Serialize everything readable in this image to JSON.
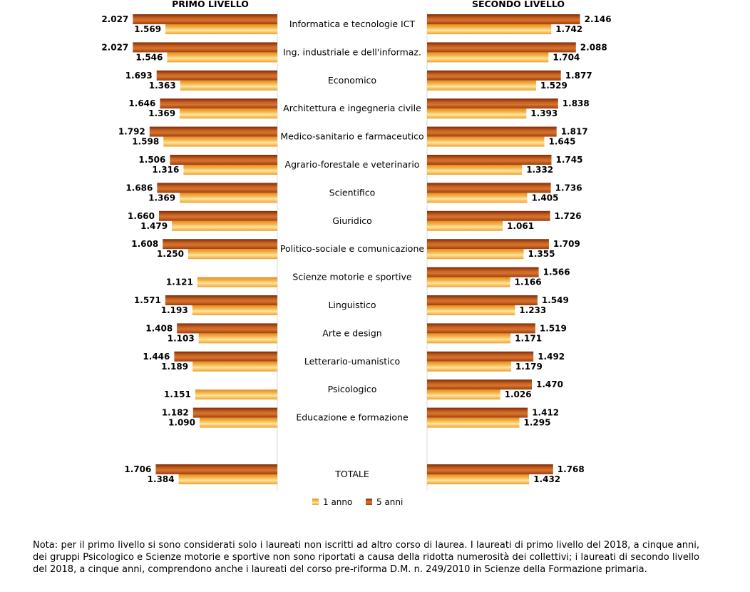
{
  "chart_data": {
    "type": "bar",
    "orientation": "horizontal",
    "panels": [
      {
        "title": "PRIMO LIVELLO",
        "direction": "leftward"
      },
      {
        "title": "SECONDO LIVELLO",
        "direction": "rightward"
      }
    ],
    "categories": [
      "Informatica e tecnologie ICT",
      "Ing. industriale e dell'informaz.",
      "Economico",
      "Architettura e ingegneria civile",
      "Medico-sanitario e farmaceutico",
      "Agrario-forestale e veterinario",
      "Scientifico",
      "Giuridico",
      "Politico-sociale e comunicazione",
      "Scienze motorie e sportive",
      "Linguistico",
      "Arte e design",
      "Letterario-umanistico",
      "Psicologico",
      "Educazione e formazione",
      "TOTALE"
    ],
    "series_order_top_to_bottom": [
      "5 anni",
      "1 anno"
    ],
    "series": [
      {
        "name": "5 anni",
        "color": "#c0561b",
        "primo": [
          2027,
          2027,
          1693,
          1646,
          1792,
          1506,
          1686,
          1660,
          1608,
          null,
          1571,
          1408,
          1446,
          null,
          1182,
          1706
        ],
        "secondo": [
          2146,
          2088,
          1877,
          1838,
          1817,
          1745,
          1736,
          1726,
          1709,
          1566,
          1549,
          1519,
          1492,
          1470,
          1412,
          1768
        ]
      },
      {
        "name": "1 anno",
        "color": "#f2a73c",
        "primo": [
          1569,
          1546,
          1363,
          1369,
          1598,
          1316,
          1369,
          1479,
          1250,
          1121,
          1193,
          1103,
          1189,
          1151,
          1090,
          1384
        ],
        "secondo": [
          1742,
          1704,
          1529,
          1393,
          1645,
          1332,
          1405,
          1061,
          1355,
          1166,
          1233,
          1171,
          1179,
          1026,
          1295,
          1432
        ]
      }
    ],
    "value_labels": {
      "5 anni": {
        "primo": [
          "2.027",
          "2.027",
          "1.693",
          "1.646",
          "1.792",
          "1.506",
          "1.686",
          "1.660",
          "1.608",
          null,
          "1.571",
          "1.408",
          "1.446",
          null,
          "1.182",
          "1.706"
        ],
        "secondo": [
          "2.146",
          "2.088",
          "1.877",
          "1.838",
          "1.817",
          "1.745",
          "1.736",
          "1.726",
          "1.709",
          "1.566",
          "1.549",
          "1.519",
          "1.492",
          "1.470",
          "1.412",
          "1.768"
        ]
      },
      "1 anno": {
        "primo": [
          "1.569",
          "1.546",
          "1.363",
          "1.369",
          "1.598",
          "1.316",
          "1.369",
          "1.479",
          "1.250",
          "1.121",
          "1.193",
          "1.103",
          "1.189",
          "1.151",
          "1.090",
          "1.384"
        ],
        "secondo": [
          "1.742",
          "1.704",
          "1.529",
          "1.393",
          "1.645",
          "1.332",
          "1.405",
          "1.061",
          "1.355",
          "1.166",
          "1.233",
          "1.171",
          "1.179",
          "1.026",
          "1.295",
          "1.432"
        ]
      }
    },
    "legend": {
      "items": [
        "1 anno",
        "5 anni"
      ],
      "position": "bottom-center"
    },
    "grid": false
  },
  "note": "Nota: per il primo livello si sono considerati solo i laureati non iscritti ad altro corso di laurea. I laureati di primo livello del 2018, a cinque anni, dei gruppi Psicologico e Scienze motorie e sportive non sono riportati a causa della ridotta numerosità dei collettivi; i laureati di secondo livello del 2018, a cinque anni, comprendono anche i laureati del corso pre-riforma D.M. n. 249/2010 in Scienze della Formazione primaria."
}
